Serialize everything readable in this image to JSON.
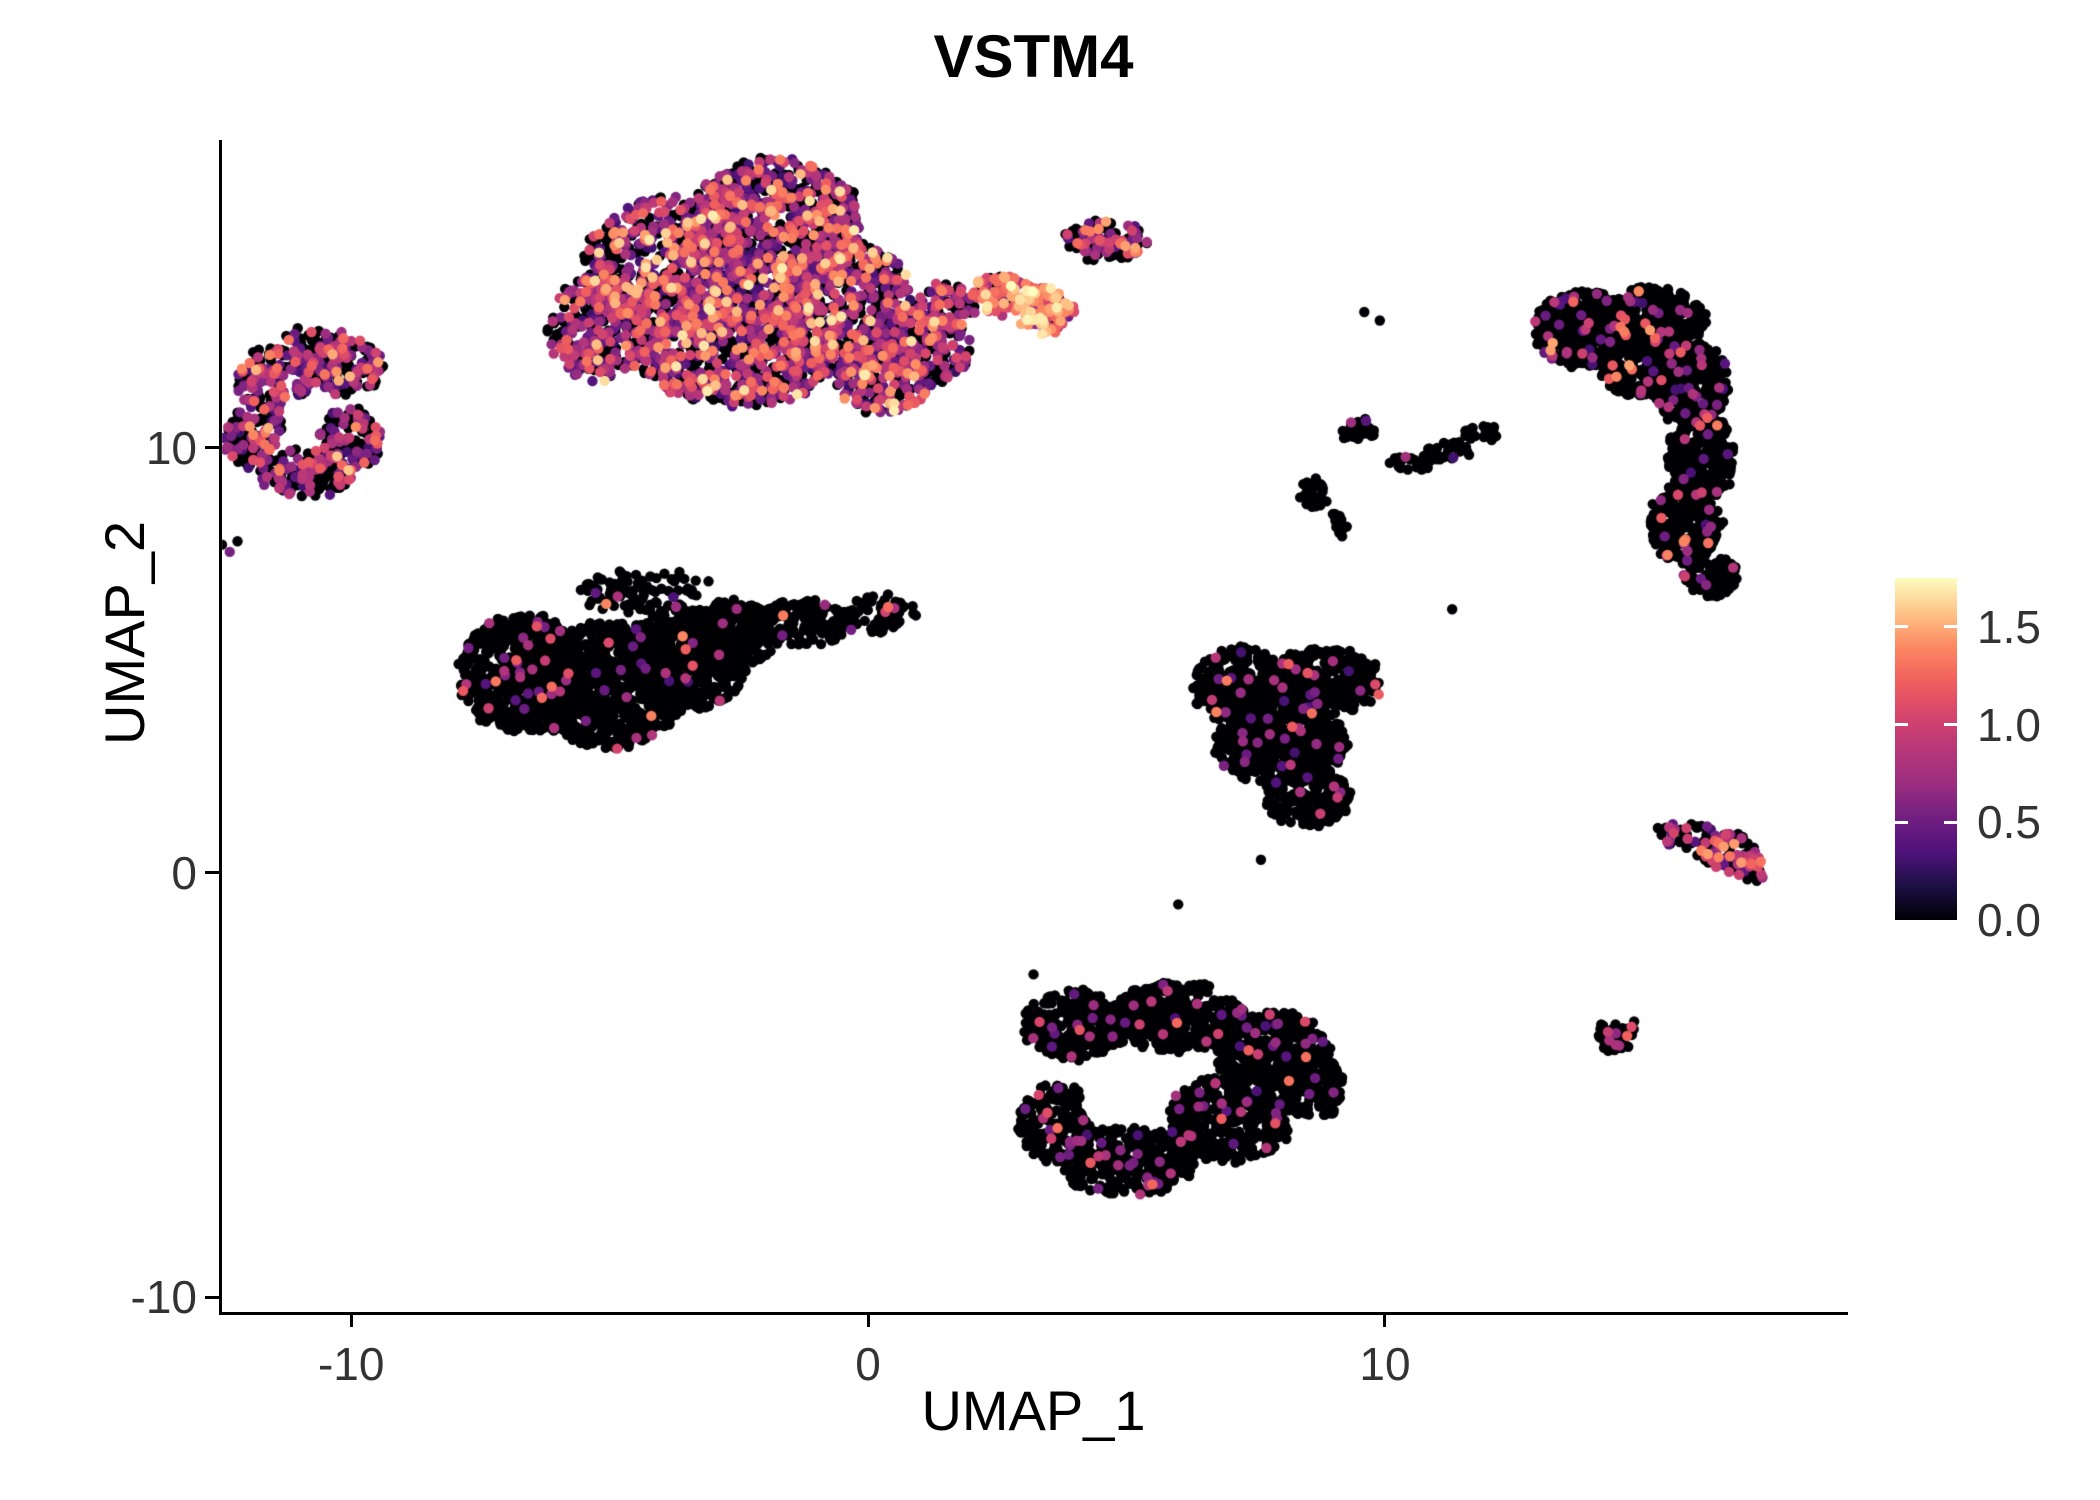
{
  "chart_data": {
    "type": "scatter",
    "title": "VSTM4",
    "xlabel": "UMAP_1",
    "ylabel": "UMAP_2",
    "x_domain": [
      -12.5,
      18.9
    ],
    "y_domain": [
      -10.35,
      17.25
    ],
    "x_ticks": [
      -10,
      0,
      10
    ],
    "y_ticks": [
      10,
      0,
      -10
    ],
    "grid": false,
    "legend": {
      "position": "right",
      "vmin": 0,
      "vmax": 1.75,
      "tick_labels": [
        "1.5",
        "1.0",
        "0.5",
        "0.0"
      ],
      "tick_values": [
        1.5,
        1.0,
        0.5,
        0.0
      ]
    },
    "colormap": {
      "name": "magma",
      "stops": [
        [
          0.0,
          "#000004"
        ],
        [
          0.1,
          "#1c1044"
        ],
        [
          0.2,
          "#4f127b"
        ],
        [
          0.3,
          "#721f81"
        ],
        [
          0.4,
          "#9c2e7f"
        ],
        [
          0.5,
          "#b73779"
        ],
        [
          0.6,
          "#d6456c"
        ],
        [
          0.7,
          "#f1605d"
        ],
        [
          0.8,
          "#fc8961"
        ],
        [
          0.9,
          "#fec488"
        ],
        [
          1.0,
          "#fcfdbf"
        ]
      ]
    },
    "point_radius_px": 5.2,
    "seed": 42,
    "clusters": [
      {
        "name": "top-main",
        "blobs": [
          [
            -3.9,
            14.2,
            1.6,
            1.7,
            700
          ],
          [
            -1.8,
            15.2,
            1.7,
            1.6,
            800
          ],
          [
            -2.5,
            12.3,
            1.9,
            1.3,
            700
          ],
          [
            -0.5,
            13.3,
            1.4,
            1.6,
            600
          ],
          [
            -5.2,
            12.8,
            1.0,
            1.2,
            250
          ],
          [
            0.3,
            11.6,
            0.9,
            0.8,
            200
          ],
          [
            1.2,
            12.3,
            0.8,
            0.8,
            150
          ]
        ],
        "expr": {
          "p0": 0.45,
          "bands": [
            [
              0.25,
              0.95,
              0.38
            ],
            [
              0.95,
              1.45,
              0.14
            ],
            [
              1.45,
              1.7,
              0.03
            ]
          ]
        }
      },
      {
        "name": "top-arm-connector",
        "blobs": [
          [
            1.5,
            13.3,
            0.55,
            0.6,
            80
          ]
        ],
        "expr": {
          "p0": 0.4,
          "bands": [
            [
              0.3,
              0.9,
              0.35
            ],
            [
              0.9,
              1.4,
              0.25
            ]
          ]
        }
      },
      {
        "name": "top-arm-hotspot",
        "blobs": [
          [
            2.6,
            13.6,
            0.6,
            0.5,
            90
          ],
          [
            3.4,
            13.25,
            0.55,
            0.55,
            110
          ]
        ],
        "expr": {
          "p0": 0.15,
          "bands": [
            [
              0.4,
              1.0,
              0.25
            ],
            [
              1.0,
              1.45,
              0.4
            ],
            [
              1.45,
              1.75,
              0.2
            ]
          ]
        }
      },
      {
        "name": "top-arm-tip",
        "blobs": [
          [
            4.6,
            14.9,
            0.8,
            0.45,
            120
          ]
        ],
        "expr": {
          "p0": 0.55,
          "bands": [
            [
              0.3,
              0.9,
              0.27
            ],
            [
              0.9,
              1.5,
              0.18
            ]
          ]
        }
      },
      {
        "name": "left-ring",
        "blobs": [
          [
            -11.5,
            11.6,
            0.75,
            0.75,
            150
          ],
          [
            -10.1,
            11.9,
            0.75,
            0.65,
            140
          ],
          [
            -11.9,
            10.3,
            0.55,
            0.8,
            120
          ],
          [
            -10.0,
            10.2,
            0.6,
            0.75,
            130
          ],
          [
            -10.9,
            9.4,
            0.9,
            0.55,
            150
          ],
          [
            -10.7,
            12.4,
            0.8,
            0.4,
            80
          ]
        ],
        "hole": [
          -10.9,
          10.7,
          0.45,
          0.5,
          0.8
        ],
        "expr": {
          "p0": 0.55,
          "bands": [
            [
              0.25,
              0.9,
              0.33
            ],
            [
              0.9,
              1.3,
              0.1
            ],
            [
              1.3,
              1.6,
              0.02
            ]
          ]
        }
      },
      {
        "name": "left-outliers",
        "points": [
          [
            -12.35,
            7.55,
            0.55
          ],
          [
            -12.2,
            7.8,
            0
          ],
          [
            -12.5,
            7.72,
            0
          ]
        ]
      },
      {
        "name": "center-left",
        "blobs": [
          [
            -6.7,
            4.7,
            1.2,
            1.4,
            600
          ],
          [
            -5.0,
            4.4,
            1.5,
            1.5,
            800
          ],
          [
            -3.5,
            5.0,
            1.2,
            1.2,
            500
          ],
          [
            -2.6,
            5.6,
            0.9,
            0.8,
            250
          ],
          [
            -1.2,
            5.9,
            1.0,
            0.55,
            140
          ],
          [
            0.2,
            6.1,
            0.7,
            0.45,
            60
          ],
          [
            -4.3,
            6.6,
            1.3,
            0.5,
            90
          ]
        ],
        "expr": {
          "p0": 0.965,
          "bands": [
            [
              0.3,
              0.9,
              0.025
            ],
            [
              0.9,
              1.4,
              0.01
            ]
          ]
        }
      },
      {
        "name": "center-triangle",
        "blobs": [
          [
            7.2,
            4.4,
            0.9,
            0.9,
            300
          ],
          [
            8.8,
            4.5,
            1.1,
            0.8,
            350
          ],
          [
            8.0,
            3.0,
            1.3,
            0.9,
            400
          ],
          [
            8.5,
            1.8,
            0.8,
            0.7,
            200
          ]
        ],
        "expr": {
          "p0": 0.95,
          "bands": [
            [
              0.3,
              0.9,
              0.04
            ],
            [
              0.9,
              1.4,
              0.01
            ]
          ]
        }
      },
      {
        "name": "mini-clumps",
        "blobs": [
          [
            8.6,
            8.9,
            0.3,
            0.35,
            22
          ],
          [
            9.1,
            8.2,
            0.25,
            0.3,
            15
          ]
        ],
        "expr": {
          "p0": 0.97,
          "bands": [
            [
              0.3,
              0.8,
              0.03
            ]
          ]
        }
      },
      {
        "name": "mini-arc",
        "blobs": [
          [
            9.5,
            10.4,
            0.35,
            0.25,
            25
          ],
          [
            10.5,
            9.6,
            0.45,
            0.22,
            25
          ],
          [
            11.2,
            9.95,
            0.45,
            0.22,
            28
          ],
          [
            11.9,
            10.35,
            0.4,
            0.22,
            25
          ]
        ],
        "expr": {
          "p0": 0.97,
          "bands": [
            [
              0.3,
              0.8,
              0.03
            ]
          ]
        }
      },
      {
        "name": "tall-right",
        "blobs": [
          [
            13.8,
            12.8,
            0.9,
            0.9,
            350
          ],
          [
            15.2,
            13.0,
            1.0,
            0.8,
            350
          ],
          [
            14.9,
            12.0,
            0.8,
            0.8,
            250
          ],
          [
            15.9,
            11.5,
            0.75,
            1.0,
            300
          ],
          [
            16.1,
            9.8,
            0.65,
            1.0,
            280
          ],
          [
            15.8,
            8.2,
            0.7,
            0.9,
            250
          ],
          [
            16.3,
            7.0,
            0.5,
            0.5,
            100
          ]
        ],
        "expr": {
          "p0": 0.93,
          "bands": [
            [
              0.3,
              0.9,
              0.05
            ],
            [
              0.9,
              1.5,
              0.02
            ]
          ]
        }
      },
      {
        "name": "right-flag-head",
        "blobs": [
          [
            15.8,
            0.9,
            0.55,
            0.28,
            40
          ]
        ],
        "expr": {
          "p0": 0.75,
          "bands": [
            [
              0.3,
              0.9,
              0.2
            ],
            [
              0.9,
              1.3,
              0.05
            ]
          ]
        }
      },
      {
        "name": "right-flag-body",
        "blobs": [
          [
            16.6,
            0.5,
            0.55,
            0.45,
            90
          ],
          [
            17.1,
            0.12,
            0.3,
            0.3,
            30
          ]
        ],
        "expr": {
          "p0": 0.5,
          "bands": [
            [
              0.4,
              1.0,
              0.3
            ],
            [
              1.0,
              1.5,
              0.2
            ]
          ]
        }
      },
      {
        "name": "bottom",
        "blobs": [
          [
            4.0,
            -3.6,
            1.0,
            0.8,
            300
          ],
          [
            6.0,
            -3.4,
            1.3,
            0.8,
            400
          ],
          [
            7.8,
            -4.2,
            1.1,
            0.9,
            350
          ],
          [
            7.0,
            -5.8,
            1.2,
            1.0,
            400
          ],
          [
            5.0,
            -6.8,
            1.3,
            0.8,
            350
          ],
          [
            3.6,
            -5.9,
            0.7,
            0.9,
            200
          ],
          [
            8.6,
            -5.0,
            0.6,
            0.8,
            150
          ]
        ],
        "hole": [
          4.65,
          -5.2,
          0.55,
          0.8,
          0.85
        ],
        "expr": {
          "p0": 0.95,
          "bands": [
            [
              0.3,
              0.9,
              0.04
            ],
            [
              0.9,
              1.3,
              0.01
            ]
          ]
        }
      },
      {
        "name": "bottom-right-small",
        "blobs": [
          [
            14.5,
            -3.8,
            0.42,
            0.42,
            45
          ]
        ],
        "expr": {
          "p0": 0.82,
          "bands": [
            [
              0.4,
              0.9,
              0.12
            ],
            [
              0.9,
              1.4,
              0.06
            ]
          ]
        }
      },
      {
        "name": "strays",
        "points": [
          [
            6.0,
            -0.75,
            0
          ],
          [
            7.6,
            0.3,
            0
          ],
          [
            3.2,
            -2.4,
            0
          ],
          [
            9.6,
            13.2,
            0
          ],
          [
            9.9,
            13.0,
            0
          ],
          [
            11.3,
            6.2,
            0
          ]
        ]
      }
    ]
  },
  "colors": {
    "background": "#ffffff",
    "axis_line": "#000000",
    "tick_text": "#333333",
    "title_text": "#000000"
  }
}
